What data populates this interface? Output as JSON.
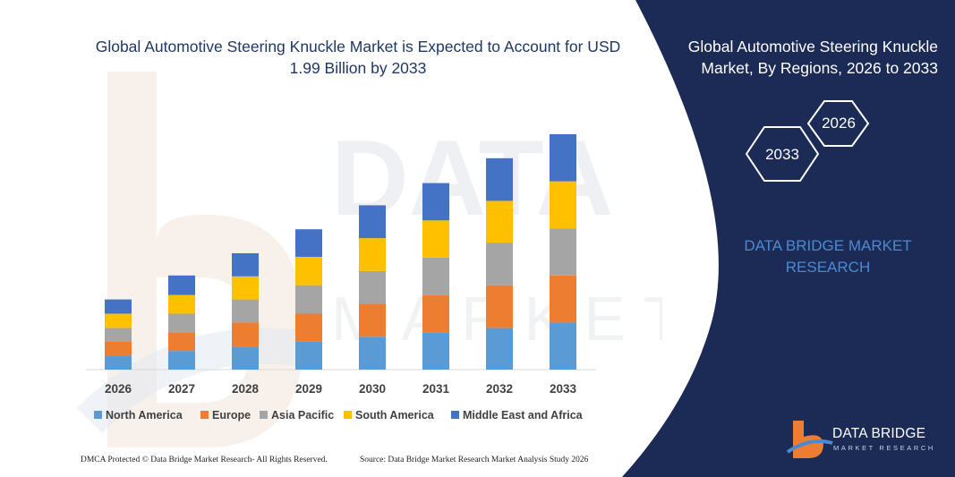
{
  "chart_data": {
    "type": "bar",
    "stacked": true,
    "title": "Global Automotive Steering Knuckle Market is Expected to Account for USD 1.99 Billion by 2033",
    "categories": [
      "2026",
      "2027",
      "2028",
      "2029",
      "2030",
      "2031",
      "2032",
      "2033"
    ],
    "series": [
      {
        "name": "North America",
        "color": "#5b9bd5",
        "values": [
          16,
          21,
          26,
          32,
          37,
          42,
          47,
          53
        ]
      },
      {
        "name": "Europe",
        "color": "#ed7d31",
        "values": [
          16,
          21,
          27,
          31,
          37,
          42,
          48,
          53
        ]
      },
      {
        "name": "Asia Pacific",
        "color": "#a5a5a5",
        "values": [
          15,
          21,
          26,
          32,
          37,
          42,
          48,
          53
        ]
      },
      {
        "name": "South America",
        "color": "#ffc000",
        "values": [
          16,
          21,
          26,
          32,
          37,
          42,
          47,
          53
        ]
      },
      {
        "name": "Middle East and Africa",
        "color": "#4472c4",
        "values": [
          16,
          22,
          26,
          31,
          37,
          42,
          48,
          53
        ]
      }
    ],
    "grid": false,
    "yaxis_visible": false,
    "legend": "bottom"
  },
  "panel": {
    "title": "Global Automotive Steering Knuckle Market, By Regions, 2026 to 2033",
    "hex_start": "2026",
    "hex_end": "2033",
    "brand": "DATA BRIDGE MARKET RESEARCH",
    "bg_color": "#1c2b55"
  },
  "logo": {
    "name": "DATA BRIDGE",
    "sub": "MARKET RESEARCH"
  },
  "footer": {
    "dmca": "DMCA Protected © Data Bridge Market Research- All Rights Reserved.",
    "source": "Source: Data Bridge Market Research Market Analysis Study 2026"
  }
}
